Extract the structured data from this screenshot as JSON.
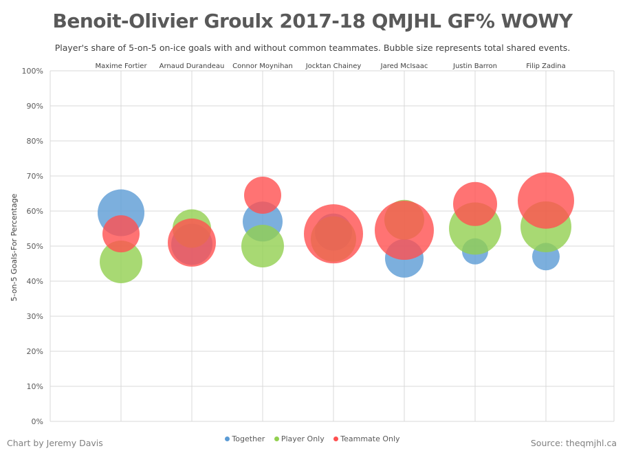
{
  "header": {
    "title": "Benoit-Olivier Groulx 2017-18 QMJHL GF% WOWY",
    "subtitle": "Player's share of 5-on-5 on-ice goals with and without common teammates. Bubble size represents total shared events."
  },
  "footer": {
    "credit": "Chart by Jeremy Davis",
    "source": "Source: theqmjhl.ca"
  },
  "colors": {
    "together": "#5B9BD5",
    "player_only": "#92D050",
    "teammate_only": "#FF5050",
    "grid": "#d9d9d9",
    "text": "#595959"
  },
  "chart_data": {
    "type": "bubble",
    "title": "Benoit-Olivier Groulx 2017-18 QMJHL GF% WOWY",
    "ylabel": "5-on-5 Goals-For Percentage",
    "ylim": [
      0,
      100
    ],
    "y_ticks": [
      "0%",
      "10%",
      "20%",
      "30%",
      "40%",
      "50%",
      "60%",
      "70%",
      "80%",
      "90%",
      "100%"
    ],
    "grid": true,
    "legend_position": "bottom",
    "categories": [
      "Maxime Fortier",
      "Arnaud Durandeau",
      "Connor Moynihan",
      "Jocktan Chainey",
      "Jared McIsaac",
      "Justin Barron",
      "Filip Zadina"
    ],
    "series": [
      {
        "name": "Together",
        "color": "#5B9BD5",
        "values": [
          59.5,
          50.5,
          57.0,
          54.0,
          46.5,
          48.5,
          47.0
        ],
        "sizes": [
          34,
          30,
          29,
          27,
          28,
          19,
          20
        ]
      },
      {
        "name": "Player Only",
        "color": "#92D050",
        "values": [
          45.5,
          55.0,
          50.0,
          52.0,
          57.5,
          55.0,
          55.5
        ],
        "sizes": [
          31,
          28,
          31,
          33,
          29,
          38,
          37
        ]
      },
      {
        "name": "Teammate Only",
        "color": "#FF5050",
        "values": [
          53.5,
          51.0,
          64.5,
          53.5,
          54.5,
          62.0,
          63.0
        ],
        "sizes": [
          27,
          35,
          27,
          43,
          43,
          32,
          41
        ]
      }
    ]
  }
}
